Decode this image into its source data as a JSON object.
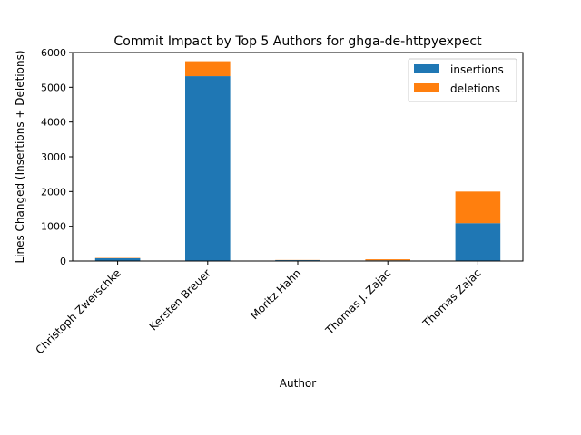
{
  "chart_data": {
    "type": "bar",
    "stacked": true,
    "title": "Commit Impact by Top 5 Authors for ghga-de-httpyexpect",
    "xlabel": "Author",
    "ylabel": "Lines Changed (Insertions + Deletions)",
    "categories": [
      "Christoph Zwerschke",
      "Kersten Breuer",
      "Moritz Hahn",
      "Thomas J. Zajac",
      "Thomas Zajac"
    ],
    "series": [
      {
        "name": "insertions",
        "color": "#1f77b4",
        "values": [
          80,
          5320,
          25,
          20,
          1090
        ]
      },
      {
        "name": "deletions",
        "color": "#ff7f0e",
        "values": [
          10,
          430,
          5,
          30,
          910
        ]
      }
    ],
    "ylim": [
      0,
      6000
    ],
    "yticks": [
      0,
      1000,
      2000,
      3000,
      4000,
      5000,
      6000
    ],
    "grid": false,
    "legend_position": "top-right"
  }
}
